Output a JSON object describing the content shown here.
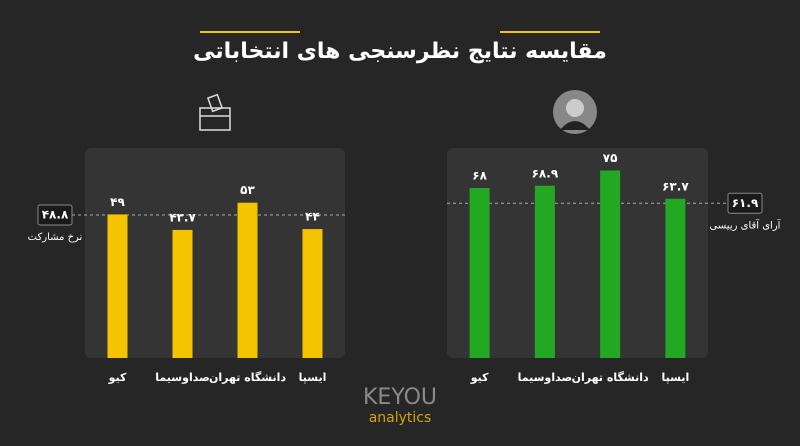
{
  "title": "مقایسه نتایج نظرسنجی های انتخاباتی",
  "logo": {
    "brand": "KEYOU",
    "tagline": "analytics"
  },
  "chart_data": [
    {
      "type": "bar",
      "categories": [
        "کیو",
        "صداوسیما",
        "دانشگاه تهران",
        "ایسپا"
      ],
      "values": [
        49,
        43.7,
        53,
        44
      ],
      "value_labels": [
        "۴۹",
        "۴۳.۷",
        "۵۳",
        "۴۴"
      ],
      "color": "#f5c400",
      "reference": {
        "value": 48.8,
        "label": "۴۸.۸",
        "text": "نرخ مشارکت"
      }
    },
    {
      "type": "bar",
      "categories": [
        "کیو",
        "صداوسیما",
        "دانشگاه تهران",
        "ایسپا"
      ],
      "values": [
        68,
        68.9,
        75,
        63.7
      ],
      "value_labels": [
        "۶۸",
        "۶۸.۹",
        "۷۵",
        "۶۳.۷"
      ],
      "color": "#22a822",
      "reference": {
        "value": 61.9,
        "label": "۶۱.۹",
        "text": "آرای آقای رییسی"
      }
    }
  ]
}
